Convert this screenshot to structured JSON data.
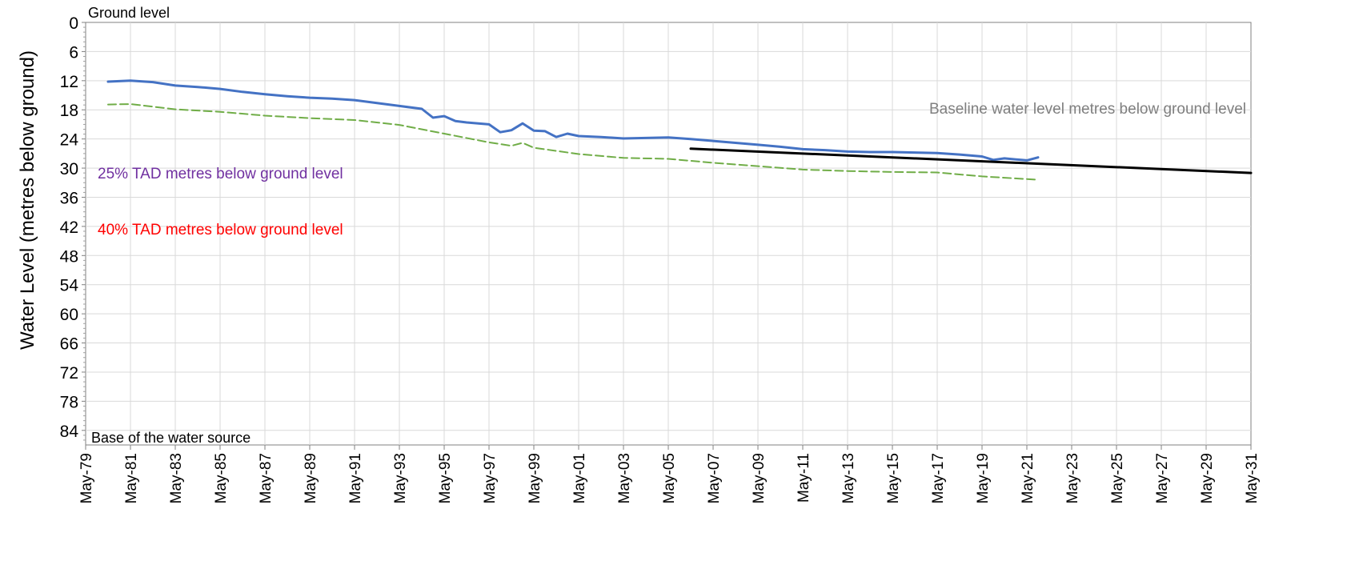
{
  "chart_data": {
    "type": "line",
    "title": "",
    "ylabel": "Water Level (metres below ground)",
    "xlabel": "",
    "y_inverted": true,
    "ylim": [
      0,
      87
    ],
    "yticks": [
      0,
      6,
      12,
      18,
      24,
      30,
      36,
      42,
      48,
      54,
      60,
      66,
      72,
      78,
      84
    ],
    "xlim": [
      "1979-05",
      "2031-05"
    ],
    "xtick_labels": [
      "May-79",
      "May-81",
      "May-83",
      "May-85",
      "May-87",
      "May-89",
      "May-91",
      "May-93",
      "May-95",
      "May-97",
      "May-99",
      "May-01",
      "May-03",
      "May-05",
      "May-07",
      "May-09",
      "May-11",
      "May-13",
      "May-15",
      "May-17",
      "May-19",
      "May-21",
      "May-23",
      "May-25",
      "May-27",
      "May-29",
      "May-31"
    ],
    "grid": true,
    "annotations": {
      "ground_level": "Ground level",
      "base": "Base of the water source",
      "baseline": "Baseline water level metres below ground level",
      "tad25": "25% TAD metres below ground level",
      "tad40": "40% TAD metres below ground level"
    },
    "series": [
      {
        "color": "#4472c4",
        "style": "solid",
        "points": [
          [
            "1980-05",
            12.2
          ],
          [
            "1981-05",
            12.0
          ],
          [
            "1982-05",
            12.3
          ],
          [
            "1983-05",
            13.0
          ],
          [
            "1984-05",
            13.3
          ],
          [
            "1985-05",
            13.7
          ],
          [
            "1986-05",
            14.3
          ],
          [
            "1987-05",
            14.8
          ],
          [
            "1988-05",
            15.2
          ],
          [
            "1989-05",
            15.5
          ],
          [
            "1990-05",
            15.7
          ],
          [
            "1991-05",
            16.0
          ],
          [
            "1992-05",
            16.6
          ],
          [
            "1993-05",
            17.2
          ],
          [
            "1994-05",
            17.8
          ],
          [
            "1994-11",
            19.6
          ],
          [
            "1995-05",
            19.3
          ],
          [
            "1995-11",
            20.3
          ],
          [
            "1996-05",
            20.6
          ],
          [
            "1997-05",
            21.0
          ],
          [
            "1997-11",
            22.6
          ],
          [
            "1998-05",
            22.2
          ],
          [
            "1998-11",
            20.8
          ],
          [
            "1999-05",
            22.3
          ],
          [
            "1999-11",
            22.4
          ],
          [
            "2000-05",
            23.6
          ],
          [
            "2000-11",
            22.9
          ],
          [
            "2001-05",
            23.4
          ],
          [
            "2002-05",
            23.6
          ],
          [
            "2003-05",
            23.9
          ],
          [
            "2004-05",
            23.8
          ],
          [
            "2005-05",
            23.7
          ],
          [
            "2006-05",
            24.0
          ],
          [
            "2007-05",
            24.4
          ],
          [
            "2008-05",
            24.8
          ],
          [
            "2009-05",
            25.2
          ],
          [
            "2010-05",
            25.6
          ],
          [
            "2011-05",
            26.1
          ],
          [
            "2012-05",
            26.3
          ],
          [
            "2013-05",
            26.6
          ],
          [
            "2014-05",
            26.7
          ],
          [
            "2015-05",
            26.7
          ],
          [
            "2016-05",
            26.8
          ],
          [
            "2017-05",
            26.9
          ],
          [
            "2018-05",
            27.2
          ],
          [
            "2019-05",
            27.6
          ],
          [
            "2019-11",
            28.3
          ],
          [
            "2020-05",
            28.0
          ],
          [
            "2021-05",
            28.4
          ],
          [
            "2021-11",
            27.8
          ]
        ]
      },
      {
        "color": "#70ad47",
        "style": "dashed",
        "points": [
          [
            "1980-05",
            16.9
          ],
          [
            "1981-05",
            16.8
          ],
          [
            "1983-05",
            17.9
          ],
          [
            "1985-05",
            18.4
          ],
          [
            "1987-05",
            19.2
          ],
          [
            "1989-05",
            19.7
          ],
          [
            "1991-05",
            20.1
          ],
          [
            "1993-05",
            21.1
          ],
          [
            "1995-05",
            22.9
          ],
          [
            "1997-05",
            24.7
          ],
          [
            "1998-05",
            25.4
          ],
          [
            "1998-11",
            24.8
          ],
          [
            "1999-05",
            25.8
          ],
          [
            "2001-05",
            27.1
          ],
          [
            "2003-05",
            27.9
          ],
          [
            "2005-05",
            28.1
          ],
          [
            "2007-05",
            28.9
          ],
          [
            "2009-05",
            29.6
          ],
          [
            "2011-05",
            30.3
          ],
          [
            "2013-05",
            30.6
          ],
          [
            "2015-05",
            30.8
          ],
          [
            "2017-05",
            30.9
          ],
          [
            "2019-05",
            31.7
          ],
          [
            "2021-11",
            32.4
          ]
        ]
      },
      {
        "color": "#000000",
        "style": "solid",
        "points": [
          [
            "2006-05",
            26.0
          ],
          [
            "2031-05",
            31.0
          ]
        ]
      }
    ]
  }
}
